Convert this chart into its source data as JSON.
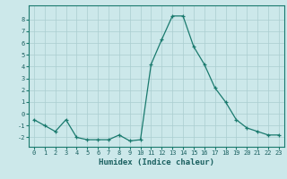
{
  "x": [
    0,
    1,
    2,
    3,
    4,
    5,
    6,
    7,
    8,
    9,
    10,
    11,
    12,
    13,
    14,
    15,
    16,
    17,
    18,
    19,
    20,
    21,
    22,
    23
  ],
  "y": [
    -0.5,
    -1.0,
    -1.5,
    -0.5,
    -2.0,
    -2.2,
    -2.2,
    -2.2,
    -1.8,
    -2.3,
    -2.2,
    4.2,
    6.3,
    8.3,
    8.3,
    5.7,
    4.2,
    2.2,
    1.0,
    -0.5,
    -1.2,
    -1.5,
    -1.8,
    -1.8
  ],
  "xlabel": "Humidex (Indice chaleur)",
  "ylim": [
    -2.8,
    9.2
  ],
  "xlim": [
    -0.5,
    23.5
  ],
  "yticks": [
    -2,
    -1,
    0,
    1,
    2,
    3,
    4,
    5,
    6,
    7,
    8
  ],
  "xticks": [
    0,
    1,
    2,
    3,
    4,
    5,
    6,
    7,
    8,
    9,
    10,
    11,
    12,
    13,
    14,
    15,
    16,
    17,
    18,
    19,
    20,
    21,
    22,
    23
  ],
  "line_color": "#1a7a6e",
  "marker": "+",
  "bg_color": "#cce8ea",
  "grid_color": "#aacdd0",
  "tick_label_color": "#1a6060",
  "xlabel_color": "#1a6060",
  "spine_color": "#1a7a6e"
}
